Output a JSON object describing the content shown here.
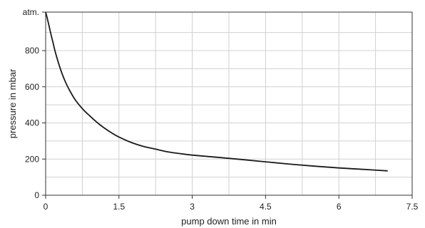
{
  "chart_data": {
    "type": "line",
    "title": "",
    "xlabel": "pump down time in min",
    "ylabel": "pressure in mbar",
    "xlim": [
      0,
      7.5
    ],
    "ylim": [
      0,
      1013
    ],
    "grid": true,
    "legend": "none",
    "x_ticks": [
      {
        "value": 0,
        "label": "0"
      },
      {
        "value": 1.5,
        "label": "1.5"
      },
      {
        "value": 3,
        "label": "3"
      },
      {
        "value": 4.5,
        "label": "4.5"
      },
      {
        "value": 6,
        "label": "6"
      },
      {
        "value": 7.5,
        "label": "7.5"
      }
    ],
    "x_grid": [
      0.75,
      1.5,
      2.25,
      3,
      3.75,
      4.5,
      5.25,
      6,
      6.75
    ],
    "y_ticks": [
      {
        "value": 0,
        "label": "0"
      },
      {
        "value": 200,
        "label": "200"
      },
      {
        "value": 400,
        "label": "400"
      },
      {
        "value": 600,
        "label": "600"
      },
      {
        "value": 800,
        "label": "800"
      },
      {
        "value": 1013,
        "label": "atm."
      }
    ],
    "y_grid": [
      100,
      200,
      300,
      400,
      500,
      600,
      700,
      800,
      900
    ],
    "series": [
      {
        "color": "#1a1a1a",
        "x": [
          0,
          0.05,
          0.1,
          0.15,
          0.2,
          0.3,
          0.4,
          0.5,
          0.6,
          0.7,
          0.8,
          0.9,
          1.0,
          1.1,
          1.2,
          1.35,
          1.5,
          1.75,
          2.0,
          2.25,
          2.5,
          2.75,
          3.0,
          3.5,
          4.0,
          4.5,
          5.0,
          5.5,
          6.0,
          6.5,
          7.0
        ],
        "y": [
          1013,
          960,
          900,
          845,
          790,
          700,
          630,
          575,
          530,
          495,
          465,
          440,
          415,
          392,
          372,
          345,
          322,
          292,
          270,
          255,
          240,
          230,
          222,
          210,
          198,
          185,
          172,
          161,
          151,
          143,
          135
        ]
      }
    ]
  }
}
